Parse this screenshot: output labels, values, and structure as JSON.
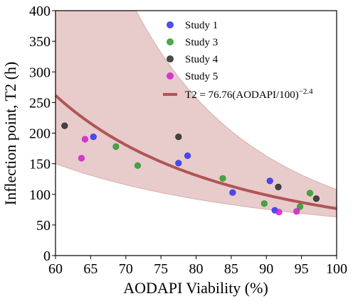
{
  "chart_data": {
    "type": "scatter",
    "xlabel": "AODAPI Viability (%)",
    "ylabel": "Inflection point, T2 (h)",
    "xlim": [
      60,
      100
    ],
    "ylim": [
      0,
      400
    ],
    "xticks": [
      60,
      65,
      70,
      75,
      80,
      85,
      90,
      95,
      100
    ],
    "yticks": [
      0,
      50,
      100,
      150,
      200,
      250,
      300,
      350,
      400
    ],
    "grid": false,
    "legend_position": "top-right",
    "series": [
      {
        "name": "Study 1",
        "color": "#3333ee",
        "points": [
          [
            65.4,
            194
          ],
          [
            77.5,
            151
          ],
          [
            78.8,
            163
          ],
          [
            85.2,
            103
          ],
          [
            90.5,
            122
          ],
          [
            91.2,
            74
          ]
        ]
      },
      {
        "name": "Study 3",
        "color": "#2e9a2e",
        "points": [
          [
            68.6,
            178
          ],
          [
            71.7,
            147
          ],
          [
            83.8,
            126
          ],
          [
            89.7,
            85
          ],
          [
            94.8,
            80
          ],
          [
            96.2,
            102
          ]
        ]
      },
      {
        "name": "Study 4",
        "color": "#2a2a2a",
        "points": [
          [
            61.3,
            212
          ],
          [
            77.5,
            194
          ],
          [
            91.7,
            112
          ],
          [
            97.1,
            93
          ]
        ]
      },
      {
        "name": "Study 5",
        "color": "#cc22cc",
        "points": [
          [
            63.7,
            159
          ],
          [
            64.2,
            190
          ],
          [
            91.8,
            71
          ],
          [
            94.3,
            72
          ]
        ]
      }
    ],
    "fit": {
      "label_prefix": "T2 = 76.76(AODAPI/100)",
      "label_exponent": "−2.4",
      "color": "#b05555",
      "band_color": "#d9a8a8",
      "coefficient": 76.76,
      "exponent": -2.4,
      "band_upper_coefficient": 108,
      "band_upper_exponent": -3.9,
      "band_lower_coefficient": 63,
      "band_lower_exponent": -1.7
    }
  }
}
